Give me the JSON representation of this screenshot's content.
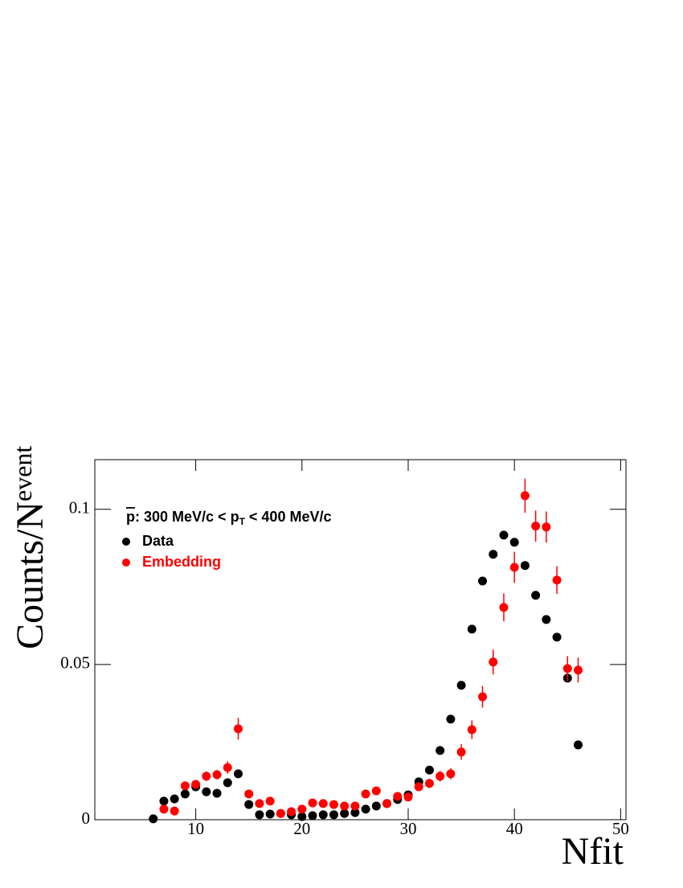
{
  "chart_data": {
    "type": "scatter",
    "xlabel": "Nfit",
    "ylabel": "Counts/N",
    "ylabel_sub": "event",
    "annotation": [
      "p",
      ": 300 MeV/c < p",
      "T",
      " < 400 MeV/c"
    ],
    "xlim": [
      0.5,
      50.5
    ],
    "ylim": [
      0,
      0.116
    ],
    "xticks": [
      10,
      20,
      30,
      40,
      50
    ],
    "yticks": [
      0,
      0.05,
      0.1
    ],
    "legend": "upper left",
    "series": [
      {
        "name": "Data",
        "color": "#000000",
        "x": [
          6,
          7,
          8,
          9,
          10,
          11,
          12,
          13,
          14,
          15,
          16,
          17,
          18,
          19,
          20,
          21,
          22,
          23,
          24,
          25,
          26,
          27,
          28,
          29,
          30,
          31,
          32,
          33,
          34,
          35,
          36,
          37,
          38,
          39,
          40,
          41,
          42,
          43,
          44,
          45,
          46
        ],
        "values": [
          0.0003,
          0.006,
          0.0067,
          0.0083,
          0.0106,
          0.009,
          0.0085,
          0.0119,
          0.0148,
          0.0049,
          0.0016,
          0.0018,
          0.002,
          0.0016,
          0.001,
          0.0013,
          0.0016,
          0.0016,
          0.002,
          0.0023,
          0.0034,
          0.0044,
          0.0052,
          0.0065,
          0.008,
          0.0122,
          0.016,
          0.0223,
          0.0324,
          0.0433,
          0.0614,
          0.0769,
          0.0855,
          0.0917,
          0.0894,
          0.0819,
          0.0723,
          0.0645,
          0.0588,
          0.0456,
          0.0241
        ]
      },
      {
        "name": "Embedding",
        "color": "#ff0000",
        "x": [
          7,
          8,
          9,
          10,
          11,
          12,
          13,
          14,
          15,
          16,
          17,
          18,
          19,
          20,
          21,
          22,
          23,
          24,
          25,
          26,
          27,
          28,
          29,
          30,
          31,
          32,
          33,
          34,
          35,
          36,
          37,
          38,
          39,
          40,
          41,
          42,
          43,
          44,
          45,
          46
        ],
        "values": [
          0.0034,
          0.0028,
          0.0109,
          0.0114,
          0.014,
          0.0145,
          0.0168,
          0.0293,
          0.0083,
          0.0052,
          0.006,
          0.002,
          0.0026,
          0.0034,
          0.0054,
          0.0052,
          0.0049,
          0.0044,
          0.0044,
          0.0083,
          0.0093,
          0.0052,
          0.0075,
          0.0073,
          0.0106,
          0.0117,
          0.014,
          0.0148,
          0.0218,
          0.029,
          0.0396,
          0.0508,
          0.0684,
          0.0813,
          0.1044,
          0.0946,
          0.0943,
          0.0772,
          0.0487,
          0.0482
        ],
        "errors": [
          0.001,
          0.001,
          0.0012,
          0.0012,
          0.0015,
          0.0015,
          0.002,
          0.0035,
          0.0012,
          0.001,
          0.001,
          0.0008,
          0.0008,
          0.001,
          0.001,
          0.001,
          0.001,
          0.001,
          0.001,
          0.0012,
          0.0012,
          0.001,
          0.0012,
          0.0012,
          0.0014,
          0.0015,
          0.0017,
          0.0018,
          0.0025,
          0.003,
          0.0035,
          0.004,
          0.0045,
          0.005,
          0.0055,
          0.005,
          0.005,
          0.0045,
          0.004,
          0.004
        ]
      }
    ]
  }
}
